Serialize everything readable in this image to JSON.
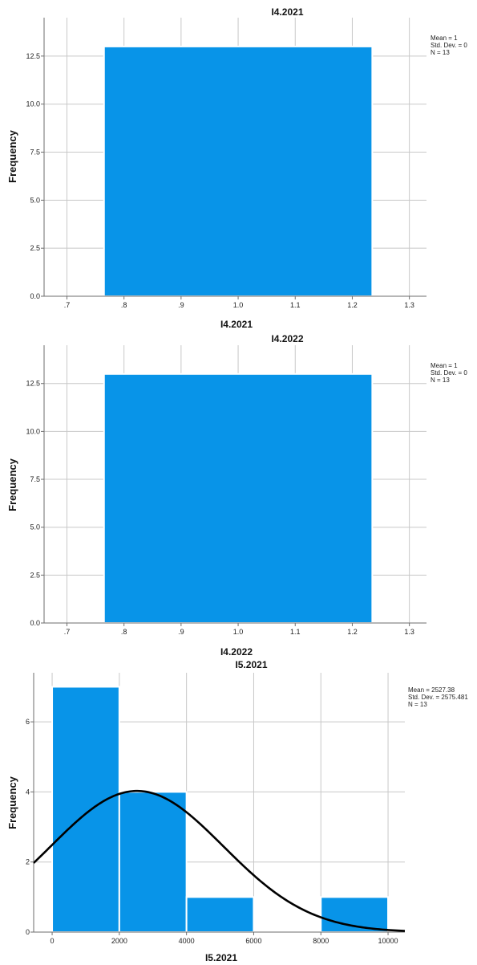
{
  "chart_data": [
    {
      "type": "bar",
      "title": "I4.2021",
      "xlabel": "I4.2021",
      "ylabel": "Frequency",
      "x_ticks": [
        ".7",
        ".8",
        ".9",
        "1.0",
        "1.1",
        "1.2",
        "1.3"
      ],
      "y_ticks": [
        "0.0",
        "2.5",
        "5.0",
        "7.5",
        "10.0",
        "12.5"
      ],
      "xlim": [
        0.66,
        1.33
      ],
      "ylim": [
        0,
        14.5
      ],
      "grid": true,
      "bins": [
        {
          "from": 0.765,
          "to": 1.235,
          "value": 13
        }
      ],
      "stats": [
        "Mean = 1",
        "Std. Dev. = 0",
        "N = 13"
      ],
      "stats_placement": "top-right",
      "bar_color": "#0894e8"
    },
    {
      "type": "bar",
      "title": "I4.2022",
      "xlabel": "I4.2022",
      "ylabel": "Frequency",
      "x_ticks": [
        ".7",
        ".8",
        ".9",
        "1.0",
        "1.1",
        "1.2",
        "1.3"
      ],
      "y_ticks": [
        "0.0",
        "2.5",
        "5.0",
        "7.5",
        "10.0",
        "12.5"
      ],
      "xlim": [
        0.66,
        1.33
      ],
      "ylim": [
        0,
        14.5
      ],
      "grid": true,
      "bins": [
        {
          "from": 0.765,
          "to": 1.235,
          "value": 13
        }
      ],
      "stats": [
        "Mean = 1",
        "Std. Dev. = 0",
        "N = 13"
      ],
      "stats_placement": "top-right",
      "bar_color": "#0894e8"
    },
    {
      "type": "bar",
      "title": "I5.2021",
      "xlabel": "I5.2021",
      "ylabel": "Frequency",
      "x_ticks": [
        "0",
        "2000",
        "4000",
        "6000",
        "8000",
        "10000"
      ],
      "y_ticks": [
        "0",
        "2",
        "4",
        "6"
      ],
      "xlim": [
        -550,
        10500
      ],
      "ylim": [
        0,
        7.4
      ],
      "grid": true,
      "bins": [
        {
          "from": 0,
          "to": 2000,
          "value": 7
        },
        {
          "from": 2000,
          "to": 4000,
          "value": 4
        },
        {
          "from": 4000,
          "to": 6000,
          "value": 1
        },
        {
          "from": 6000,
          "to": 8000,
          "value": 0
        },
        {
          "from": 8000,
          "to": 10000,
          "value": 1
        }
      ],
      "normal_curve": {
        "mean": 2527.38,
        "sd": 2575.481,
        "n": 13,
        "bin_width": 2000
      },
      "stats": [
        "Mean = 2527.38",
        "Std. Dev. = 2575.481",
        "N = 13"
      ],
      "stats_placement": "top-right",
      "bar_color": "#0894e8"
    }
  ]
}
